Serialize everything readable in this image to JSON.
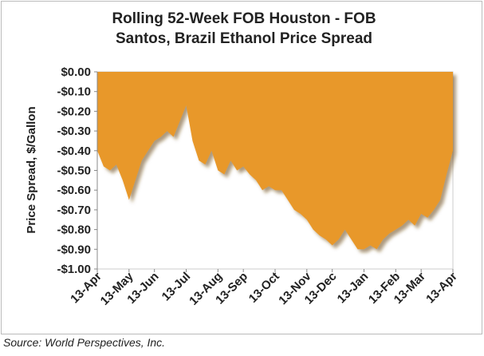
{
  "chart_data": {
    "type": "area",
    "title": [
      "Rolling 52-Week FOB Houston - FOB",
      "Santos, Brazil Ethanol Price Spread"
    ],
    "y_label": "Price Spread, $/Gallon",
    "source": "Source: World Perspectives, Inc.",
    "color": "#e8982a",
    "categories": [
      "13-Apr",
      null,
      null,
      null,
      null,
      "13-May",
      null,
      null,
      null,
      "13-Jun",
      null,
      null,
      null,
      null,
      "13-Jul",
      null,
      null,
      null,
      null,
      "13-Aug",
      null,
      null,
      null,
      "13-Sep",
      null,
      null,
      null,
      null,
      "13-Oct",
      null,
      null,
      null,
      null,
      "13-Nov",
      null,
      null,
      null,
      "13-Dec",
      null,
      null,
      null,
      null,
      "13-Jan",
      null,
      null,
      null,
      null,
      "13-Feb",
      null,
      null,
      null,
      "13-Mar",
      null,
      null,
      null,
      null,
      "13-Apr"
    ],
    "values": [
      -0.4,
      -0.48,
      -0.5,
      -0.47,
      -0.55,
      -0.65,
      -0.55,
      -0.45,
      -0.4,
      -0.35,
      -0.33,
      -0.3,
      -0.33,
      -0.25,
      -0.17,
      -0.35,
      -0.45,
      -0.47,
      -0.4,
      -0.5,
      -0.52,
      -0.45,
      -0.5,
      -0.48,
      -0.52,
      -0.55,
      -0.6,
      -0.58,
      -0.6,
      -0.6,
      -0.65,
      -0.7,
      -0.72,
      -0.75,
      -0.8,
      -0.83,
      -0.85,
      -0.88,
      -0.85,
      -0.8,
      -0.85,
      -0.9,
      -0.9,
      -0.88,
      -0.9,
      -0.85,
      -0.82,
      -0.8,
      -0.78,
      -0.75,
      -0.78,
      -0.72,
      -0.74,
      -0.7,
      -0.65,
      -0.52,
      -0.4
    ],
    "ylim": [
      -1.0,
      0.0
    ],
    "yticks": [
      {
        "value": 0.0,
        "label": "$0.00"
      },
      {
        "value": -0.1,
        "label": "-$0.10"
      },
      {
        "value": -0.2,
        "label": "-$0.20"
      },
      {
        "value": -0.3,
        "label": "-$0.30"
      },
      {
        "value": -0.4,
        "label": "-$0.40"
      },
      {
        "value": -0.5,
        "label": "-$0.50"
      },
      {
        "value": -0.6,
        "label": "-$0.60"
      },
      {
        "value": -0.7,
        "label": "-$0.70"
      },
      {
        "value": -0.8,
        "label": "-$0.80"
      },
      {
        "value": -0.9,
        "label": "-$0.90"
      },
      {
        "value": -1.0,
        "label": "-$1.00"
      }
    ],
    "grid": false
  }
}
